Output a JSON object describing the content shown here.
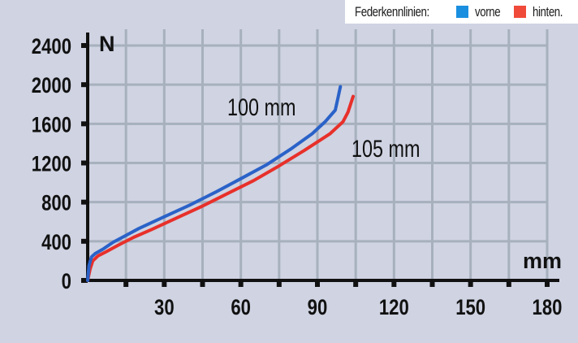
{
  "legend": {
    "title": "Federkennlinien:",
    "items": [
      {
        "label": "vorne",
        "color": "#1a8fe0"
      },
      {
        "label": "hinten.",
        "color": "#f04a3a"
      }
    ]
  },
  "axes": {
    "y_unit": "N",
    "x_unit": "mm",
    "y_ticks": [
      "2400",
      "2000",
      "1600",
      "1200",
      "800",
      "400",
      "0"
    ],
    "x_ticks": [
      "30",
      "60",
      "90",
      "120",
      "150",
      "180"
    ]
  },
  "annotations": {
    "front_travel": "100 mm",
    "rear_travel": "105 mm"
  },
  "chart_data": {
    "type": "line",
    "title": "Federkennlinien",
    "xlabel": "mm",
    "ylabel": "N",
    "xlim": [
      0,
      180
    ],
    "ylim": [
      0,
      2400
    ],
    "x_ticks": [
      30,
      60,
      90,
      120,
      150,
      180
    ],
    "y_ticks": [
      0,
      400,
      800,
      1200,
      1600,
      2000,
      2400
    ],
    "grid": true,
    "legend_position": "top-right",
    "series": [
      {
        "name": "vorne",
        "color": "#2a62c8",
        "annotation": "100 mm",
        "x": [
          0,
          0.5,
          1.5,
          3,
          6,
          10,
          15,
          20,
          30,
          40,
          50,
          60,
          70,
          80,
          88,
          93,
          97,
          98,
          99
        ],
        "y": [
          0,
          150,
          240,
          275,
          320,
          390,
          460,
          530,
          650,
          770,
          900,
          1040,
          1180,
          1350,
          1500,
          1620,
          1740,
          1860,
          1980
        ]
      },
      {
        "name": "hinten",
        "color": "#e8302a",
        "annotation": "105 mm",
        "x": [
          0,
          1,
          2,
          4,
          7,
          12,
          18,
          25,
          35,
          45,
          55,
          65,
          75,
          85,
          95,
          100,
          102,
          104
        ],
        "y": [
          0,
          120,
          200,
          250,
          290,
          360,
          440,
          520,
          640,
          760,
          890,
          1020,
          1170,
          1330,
          1500,
          1620,
          1720,
          1880
        ]
      }
    ]
  }
}
